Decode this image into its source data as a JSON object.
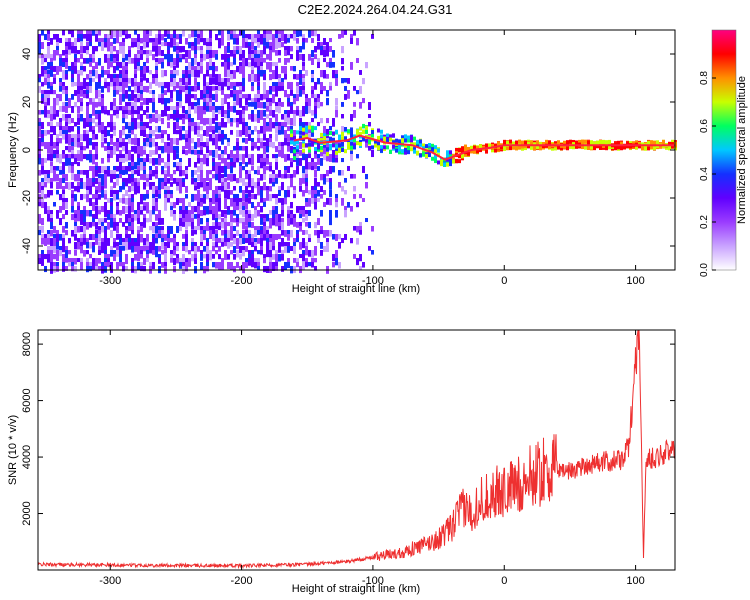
{
  "figure": {
    "title": "C2E2.2024.264.04.24.G31"
  },
  "chart_data": [
    {
      "type": "heatmap",
      "title": "",
      "xlabel": "Height of straight line (km)",
      "ylabel": "Frequency (Hz)",
      "xlim": [
        -355,
        130
      ],
      "ylim": [
        -50,
        50
      ],
      "xticks": [
        -300,
        -200,
        -100,
        0,
        100
      ],
      "yticks": [
        -40,
        -20,
        0,
        20,
        40
      ],
      "colorbar": {
        "label": "Normalized spectral amplitude",
        "range": [
          0,
          1
        ],
        "ticks": [
          0.0,
          0.2,
          0.4,
          0.6,
          0.8
        ],
        "colors": [
          "#ffffff",
          "#c9a3ff",
          "#9a3cff",
          "#6000ff",
          "#1430ff",
          "#00c8ff",
          "#00ff60",
          "#c8ff00",
          "#ff9000",
          "#ff0000",
          "#ff0080"
        ]
      },
      "tracks": [
        {
          "name": "",
          "points": [
            [
              -160,
              4
            ],
            [
              -150,
              5
            ],
            [
              -140,
              3
            ],
            [
              -120,
              4
            ],
            [
              -110,
              6
            ],
            [
              -90,
              3
            ],
            [
              -70,
              2
            ],
            [
              -55,
              -1
            ],
            [
              -45,
              -4
            ],
            [
              -35,
              -2
            ],
            [
              -25,
              0
            ],
            [
              -10,
              1
            ],
            [
              0,
              2
            ],
            [
              20,
              2
            ],
            [
              50,
              2
            ],
            [
              80,
              2
            ],
            [
              100,
              2
            ],
            [
              130,
              2
            ]
          ]
        }
      ]
    },
    {
      "type": "line",
      "title": "",
      "xlabel": "Height of straight line (km)",
      "ylabel": "SNR (10 * v/v)",
      "xlim": [
        -355,
        130
      ],
      "ylim": [
        0,
        8500
      ],
      "xticks": [
        -300,
        -200,
        -100,
        0,
        100
      ],
      "yticks": [
        2000,
        4000,
        6000,
        8000
      ],
      "series": [
        {
          "name": "",
          "color": "#ee3030",
          "x": [
            -355,
            -300,
            -250,
            -200,
            -150,
            -120,
            -100,
            -80,
            -60,
            -50,
            -40,
            -35,
            -30,
            -25,
            -20,
            -10,
            0,
            10,
            20,
            30,
            40,
            50,
            60,
            70,
            80,
            90,
            95,
            100,
            103,
            106,
            108,
            110,
            115,
            120,
            130
          ],
          "y": [
            200,
            180,
            160,
            150,
            200,
            300,
            450,
            600,
            900,
            1100,
            1500,
            2000,
            2200,
            2000,
            2400,
            2700,
            2800,
            3000,
            3300,
            3500,
            3600,
            3500,
            3700,
            3800,
            3850,
            3900,
            4400,
            7500,
            8400,
            400,
            3900,
            3950,
            4000,
            4100,
            4300
          ]
        }
      ]
    }
  ]
}
